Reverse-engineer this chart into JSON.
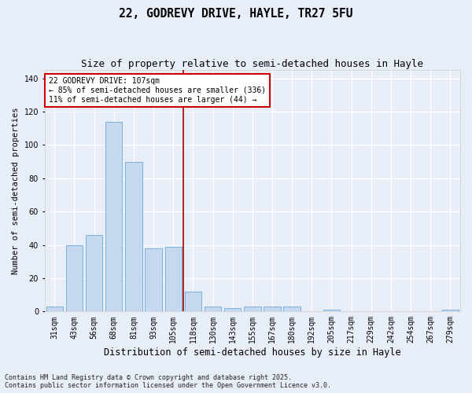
{
  "title": "22, GODREVY DRIVE, HAYLE, TR27 5FU",
  "subtitle": "Size of property relative to semi-detached houses in Hayle",
  "xlabel": "Distribution of semi-detached houses by size in Hayle",
  "ylabel": "Number of semi-detached properties",
  "categories": [
    "31sqm",
    "43sqm",
    "56sqm",
    "68sqm",
    "81sqm",
    "93sqm",
    "105sqm",
    "118sqm",
    "130sqm",
    "143sqm",
    "155sqm",
    "167sqm",
    "180sqm",
    "192sqm",
    "205sqm",
    "217sqm",
    "229sqm",
    "242sqm",
    "254sqm",
    "267sqm",
    "279sqm"
  ],
  "values": [
    3,
    40,
    46,
    114,
    90,
    38,
    39,
    12,
    3,
    2,
    3,
    3,
    3,
    0,
    1,
    0,
    0,
    0,
    0,
    0,
    1
  ],
  "bar_color": "#c5d8f0",
  "bar_edge_color": "#6aaad4",
  "background_color": "#e8eef8",
  "grid_color": "#ffffff",
  "fig_background_color": "#e8eef8",
  "vline_x": 6.5,
  "vline_color": "#aa0000",
  "annotation_text": "22 GODREVY DRIVE: 107sqm\n← 85% of semi-detached houses are smaller (336)\n11% of semi-detached houses are larger (44) →",
  "annotation_box_edge_color": "#cc0000",
  "ylim": [
    0,
    145
  ],
  "yticks": [
    0,
    20,
    40,
    60,
    80,
    100,
    120,
    140
  ],
  "footnote": "Contains HM Land Registry data © Crown copyright and database right 2025.\nContains public sector information licensed under the Open Government Licence v3.0.",
  "title_fontsize": 10.5,
  "subtitle_fontsize": 9,
  "xlabel_fontsize": 8.5,
  "ylabel_fontsize": 7.5,
  "tick_fontsize": 7,
  "annot_fontsize": 7,
  "footnote_fontsize": 6
}
